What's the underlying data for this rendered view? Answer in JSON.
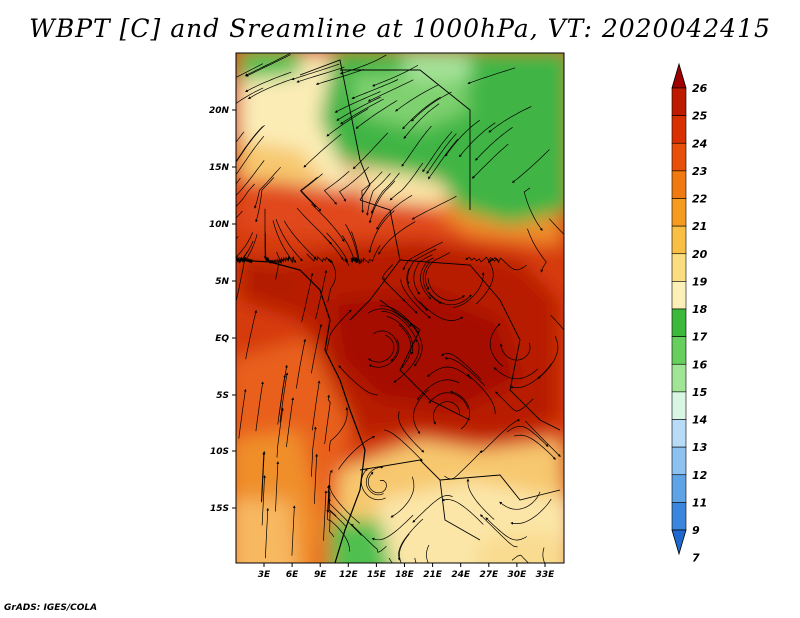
{
  "title": "WBPT [C] and Sreamline at 1000hPa, VT: 2020042415",
  "footer": "GrADS: IGES/COLA",
  "map": {
    "lat_ticks": [
      "20N",
      "15N",
      "10N",
      "5N",
      "EQ",
      "5S",
      "10S",
      "15S"
    ],
    "lon_ticks": [
      "3E",
      "6E",
      "9E",
      "12E",
      "15E",
      "18E",
      "21E",
      "24E",
      "27E",
      "30E",
      "33E"
    ]
  },
  "colorbar": {
    "levels": [
      "26",
      "25",
      "24",
      "23",
      "22",
      "21",
      "20",
      "19",
      "18",
      "17",
      "16",
      "15",
      "14",
      "13",
      "12",
      "11",
      "9",
      "7"
    ],
    "colors": [
      "#9e0000",
      "#bd1a00",
      "#d83000",
      "#e8500a",
      "#f07a10",
      "#f59c1f",
      "#f9bf45",
      "#f9dd80",
      "#fbf1b8",
      "#3cb83a",
      "#67cf5e",
      "#a0e596",
      "#d8f6e4",
      "#b8dcf7",
      "#8cc1f0",
      "#5ea3e6",
      "#3a86dc",
      "#1f68d0"
    ]
  },
  "legend_colors": {
    "very_hot": "#a50f00",
    "hot": "#c9230a",
    "warm": "#e1481c",
    "mild": "#f08f2c",
    "pale": "#f7c86e",
    "cream": "#fbecb5",
    "green": "#40b545",
    "light_green": "#7fd170"
  }
}
